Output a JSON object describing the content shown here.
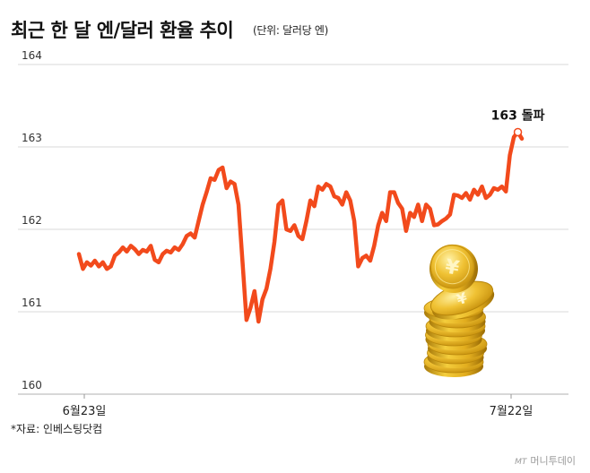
{
  "header": {
    "title": "최근 한 달 엔/달러 환율 추이",
    "unit": "(단위: 달러당 엔)"
  },
  "footer": {
    "source": "*자료: 인베스팅닷컴",
    "credit_prefix": "MT",
    "credit": "머니투데이"
  },
  "annotation": "163 돌파",
  "colors": {
    "line": "#f24a1c",
    "grid": "#d9d9d9",
    "coin": "#e8b92c"
  },
  "chart_data": {
    "type": "line",
    "title": "최근 한 달 엔/달러 환율 추이",
    "unit": "달러당 엔",
    "ylim": [
      160,
      164
    ],
    "yticks": [
      160,
      161,
      162,
      163,
      164
    ],
    "xticks": [
      "6월23일",
      "7월22일"
    ],
    "grid": "horizontal",
    "annotation": {
      "text": "163 돌파",
      "value": 163.1
    },
    "series": [
      {
        "values": [
          161.7,
          161.52,
          161.6,
          161.56,
          161.62,
          161.55,
          161.6,
          161.52,
          161.55,
          161.68,
          161.72,
          161.78,
          161.73,
          161.8,
          161.76,
          161.7,
          161.75,
          161.73,
          161.8,
          161.63,
          161.6,
          161.7,
          161.74,
          161.72,
          161.78,
          161.75,
          161.82,
          161.92,
          161.95,
          161.9,
          162.1,
          162.3,
          162.45,
          162.62,
          162.6,
          162.72,
          162.75,
          162.5,
          162.58,
          162.55,
          162.3,
          161.6,
          160.9,
          161.05,
          161.25,
          160.88,
          161.15,
          161.28,
          161.52,
          161.85,
          162.3,
          162.35,
          162.0,
          161.98,
          162.05,
          161.92,
          161.88,
          162.1,
          162.35,
          162.28,
          162.52,
          162.48,
          162.55,
          162.52,
          162.4,
          162.38,
          162.3,
          162.45,
          162.35,
          162.1,
          161.55,
          161.65,
          161.68,
          161.62,
          161.8,
          162.05,
          162.2,
          162.1,
          162.45,
          162.45,
          162.32,
          162.25,
          161.98,
          162.2,
          162.15,
          162.3,
          162.1,
          162.3,
          162.25,
          162.05,
          162.06,
          162.1,
          162.13,
          162.18,
          162.42,
          162.41,
          162.38,
          162.44,
          162.36,
          162.48,
          162.42,
          162.52,
          162.38,
          162.42,
          162.5,
          162.48,
          162.52,
          162.46,
          162.9,
          163.12,
          163.18,
          163.1
        ]
      }
    ]
  }
}
